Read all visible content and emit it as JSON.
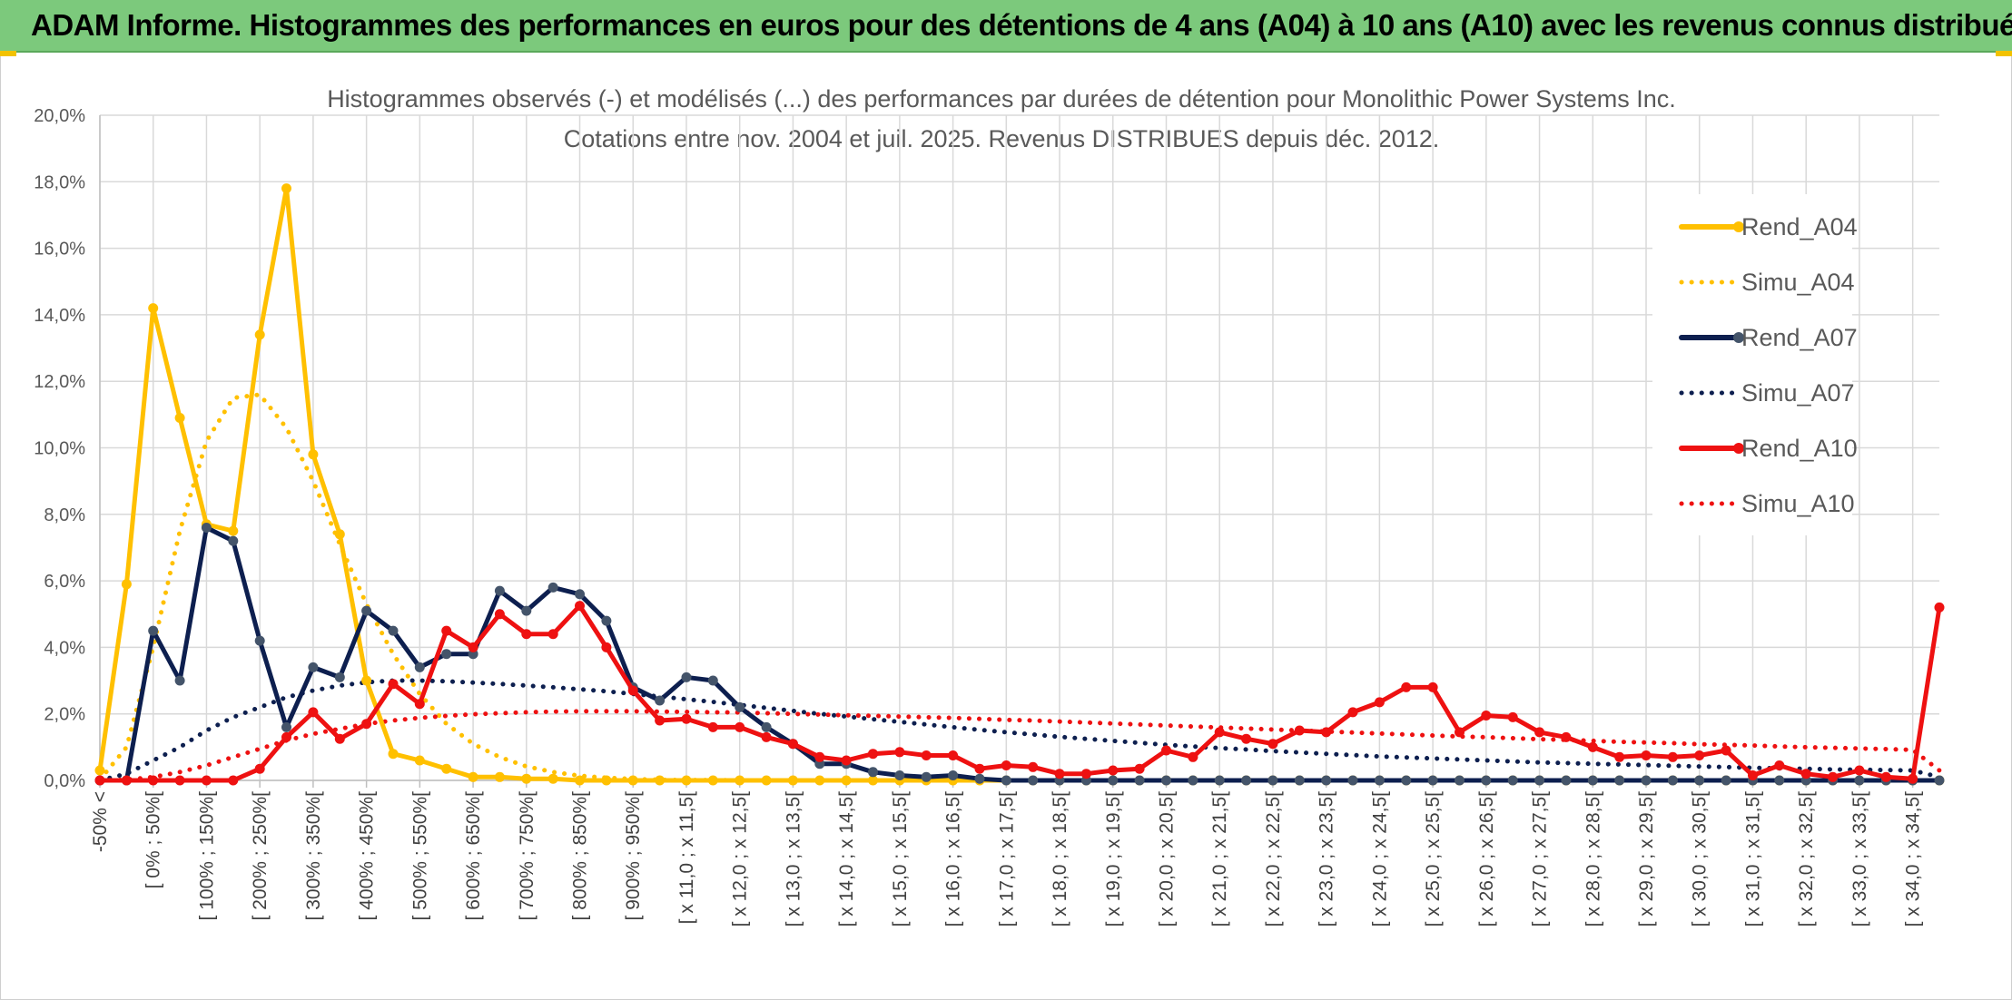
{
  "header": {
    "title": "ADAM Informe. Histogrammes des performances en euros pour des détentions de 4 ans (A04) à 10 ans (A10) avec les revenus connus distribués"
  },
  "chart_data": {
    "type": "line",
    "title": "Histogrammes observés (-) et modélisés (...) des performances par durées de détention pour Monolithic Power Systems Inc.",
    "subtitle": "Cotations entre nov. 2004 et juil. 2025. Revenus DISTRIBUES depuis déc. 2012.",
    "xlabel": "",
    "ylabel": "",
    "ylim": [
      0,
      20
    ],
    "y_ticks": [
      "0,0%",
      "2,0%",
      "4,0%",
      "6,0%",
      "8,0%",
      "10,0%",
      "12,0%",
      "14,0%",
      "16,0%",
      "18,0%",
      "20,0%"
    ],
    "grid": true,
    "legend_position": "right",
    "x_count": 70,
    "x_tick_labels": [
      "-50% <",
      "[ 0% ; 50%[",
      "[ 100% ; 150%[",
      "[ 200% ; 250%[",
      "[ 300% ; 350%[",
      "[ 400% ; 450%[",
      "[ 500% ; 550%[",
      "[ 600% ; 650%[",
      "[ 700% ; 750%[",
      "[ 800% ; 850%[",
      "[ 900% ; 950%[",
      "[ x 11,0 ; x 11,5[",
      "[ x 12,0 ; x 12,5[",
      "[ x 13,0 ; x 13,5[",
      "[ x 14,0 ; x 14,5[",
      "[ x 15,0 ; x 15,5[",
      "[ x 16,0 ; x 16,5[",
      "[ x 17,0 ; x 17,5[",
      "[ x 18,0 ; x 18,5[",
      "[ x 19,0 ; x 19,5[",
      "[ x 20,0 ; x 20,5[",
      "[ x 21,0 ; x 21,5[",
      "[ x 22,0 ; x 22,5[",
      "[ x 23,0 ; x 23,5[",
      "[ x 24,0 ; x 24,5[",
      "[ x 25,0 ; x 25,5[",
      "[ x 26,0 ; x 26,5[",
      "[ x 27,0 ; x 27,5[",
      "[ x 28,0 ; x 28,5[",
      "[ x 29,0 ; x 29,5[",
      "[ x 30,0 ; x 30,5[",
      "[ x 31,0 ; x 31,5[",
      "[ x 32,0 ; x 32,5[",
      "[ x 33,0 ; x 33,5[",
      "[ x 34,0 ; x 34,5["
    ],
    "series": [
      {
        "name": "Rend_A04",
        "style": "solid",
        "color": "#FFC000",
        "values": [
          0.3,
          5.9,
          14.2,
          10.9,
          7.7,
          7.5,
          13.4,
          17.8,
          9.8,
          7.4,
          3.0,
          0.8,
          0.6,
          0.35,
          0.1,
          0.1,
          0.05,
          0.05,
          0,
          0,
          0,
          0,
          0,
          0,
          0,
          0,
          0,
          0,
          0,
          0,
          0,
          0,
          0,
          0,
          0,
          0,
          0,
          0,
          0,
          0,
          0,
          0,
          0,
          0,
          0,
          0,
          0,
          0,
          0,
          0,
          0,
          0,
          0,
          0,
          0,
          0,
          0,
          0,
          0,
          0,
          0,
          0,
          0,
          0,
          0,
          0,
          0,
          0,
          0,
          0
        ]
      },
      {
        "name": "Simu_A04",
        "style": "dotted",
        "color": "#FFC000",
        "values": [
          0.02,
          1.0,
          4.0,
          7.5,
          10.2,
          11.5,
          11.6,
          10.6,
          9.0,
          7.1,
          5.3,
          3.8,
          2.6,
          1.7,
          1.1,
          0.7,
          0.42,
          0.25,
          0.14,
          0.08,
          0.04,
          0.02,
          0.01,
          0.01,
          0,
          0,
          0,
          0,
          0,
          0,
          0,
          0,
          0,
          0,
          0,
          0,
          0,
          0,
          0,
          0,
          0,
          0,
          0,
          0,
          0,
          0,
          0,
          0,
          0,
          0,
          0,
          0,
          0,
          0,
          0,
          0,
          0,
          0,
          0,
          0,
          0,
          0,
          0,
          0,
          0,
          0,
          0,
          0,
          0,
          0
        ]
      },
      {
        "name": "Rend_A07",
        "style": "solid",
        "color": "#0D1F4F",
        "values": [
          0,
          0,
          4.5,
          3.0,
          7.6,
          7.2,
          4.2,
          1.6,
          3.4,
          3.1,
          5.1,
          4.5,
          3.4,
          3.8,
          3.8,
          5.7,
          5.1,
          5.8,
          5.6,
          4.8,
          2.8,
          2.4,
          3.1,
          3.0,
          2.2,
          1.6,
          1.1,
          0.5,
          0.5,
          0.25,
          0.15,
          0.1,
          0.15,
          0.05,
          0,
          0,
          0,
          0,
          0,
          0,
          0,
          0,
          0,
          0,
          0,
          0,
          0,
          0,
          0,
          0,
          0,
          0,
          0,
          0,
          0,
          0,
          0,
          0,
          0,
          0,
          0,
          0,
          0,
          0,
          0,
          0,
          0,
          0,
          0,
          0
        ]
      },
      {
        "name": "Simu_A07",
        "style": "dotted",
        "color": "#0D1F4F",
        "values": [
          0,
          0.2,
          0.6,
          1.0,
          1.5,
          1.9,
          2.2,
          2.5,
          2.7,
          2.85,
          2.95,
          3.0,
          3.0,
          2.98,
          2.94,
          2.9,
          2.85,
          2.8,
          2.74,
          2.68,
          2.6,
          2.52,
          2.44,
          2.36,
          2.27,
          2.18,
          2.09,
          2.0,
          1.92,
          1.84,
          1.76,
          1.68,
          1.6,
          1.52,
          1.45,
          1.38,
          1.31,
          1.25,
          1.19,
          1.13,
          1.07,
          1.02,
          0.97,
          0.93,
          0.88,
          0.84,
          0.8,
          0.76,
          0.72,
          0.69,
          0.66,
          0.63,
          0.6,
          0.57,
          0.54,
          0.52,
          0.5,
          0.48,
          0.46,
          0.44,
          0.42,
          0.4,
          0.38,
          0.36,
          0.35,
          0.33,
          0.32,
          0.31,
          0.3,
          0.1
        ]
      },
      {
        "name": "Rend_A10",
        "style": "solid",
        "color": "#EE1111",
        "values": [
          0,
          0,
          0,
          0,
          0,
          0,
          0.35,
          1.3,
          2.05,
          1.25,
          1.7,
          2.9,
          2.3,
          4.5,
          4.0,
          5.0,
          4.4,
          4.4,
          5.25,
          4.0,
          2.7,
          1.8,
          1.85,
          1.6,
          1.6,
          1.3,
          1.1,
          0.7,
          0.6,
          0.8,
          0.85,
          0.75,
          0.75,
          0.35,
          0.45,
          0.4,
          0.2,
          0.2,
          0.3,
          0.35,
          0.9,
          0.7,
          1.45,
          1.25,
          1.1,
          1.5,
          1.45,
          2.05,
          2.35,
          2.8,
          2.8,
          1.45,
          1.95,
          1.9,
          1.45,
          1.3,
          1.0,
          0.7,
          0.75,
          0.7,
          0.75,
          0.9,
          0.15,
          0.45,
          0.2,
          0.1,
          0.3,
          0.1,
          0.05,
          5.2
        ]
      },
      {
        "name": "Simu_A10",
        "style": "dotted",
        "color": "#EE1111",
        "values": [
          0,
          0.02,
          0.1,
          0.25,
          0.45,
          0.7,
          0.95,
          1.2,
          1.4,
          1.55,
          1.7,
          1.8,
          1.88,
          1.94,
          1.99,
          2.02,
          2.05,
          2.07,
          2.08,
          2.08,
          2.08,
          2.07,
          2.06,
          2.05,
          2.04,
          2.02,
          2.0,
          1.98,
          1.96,
          1.94,
          1.92,
          1.9,
          1.88,
          1.85,
          1.82,
          1.8,
          1.77,
          1.74,
          1.71,
          1.68,
          1.65,
          1.62,
          1.59,
          1.56,
          1.53,
          1.5,
          1.47,
          1.44,
          1.41,
          1.38,
          1.35,
          1.32,
          1.3,
          1.27,
          1.24,
          1.22,
          1.19,
          1.16,
          1.14,
          1.12,
          1.09,
          1.07,
          1.05,
          1.02,
          1.0,
          0.98,
          0.96,
          0.94,
          0.92,
          0.3
        ]
      }
    ]
  }
}
